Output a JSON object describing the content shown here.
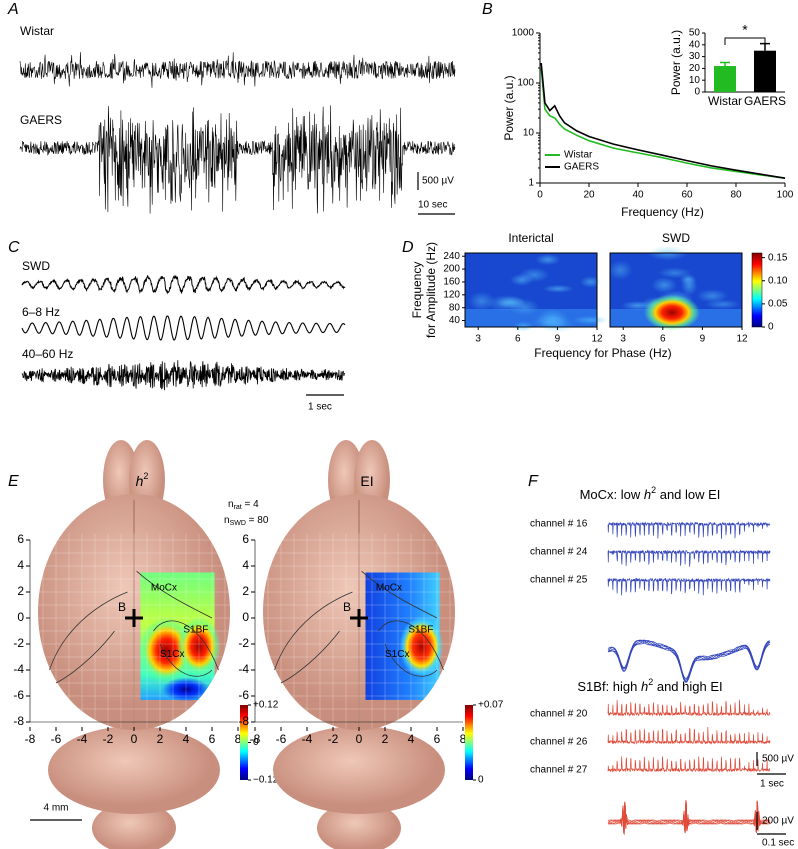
{
  "panel_labels": [
    "A",
    "B",
    "C",
    "D",
    "E",
    "F"
  ],
  "A": {
    "traces": [
      "Wistar",
      "GAERS"
    ],
    "scale_amplitude": "500 µV",
    "scale_time": "10 sec"
  },
  "chart_data": [
    {
      "type": "line",
      "xlabel": "Frequency (Hz)",
      "ylabel": "Power (a.u.)",
      "log_y": true,
      "xlim": [
        0,
        100
      ],
      "ylim": [
        1,
        1000
      ],
      "xticks": [
        0,
        20,
        40,
        60,
        80,
        100
      ],
      "yticks": [
        1,
        10,
        100,
        1000
      ],
      "x": [
        0.5,
        2,
        4,
        6,
        8,
        10,
        15,
        20,
        30,
        40,
        50,
        60,
        70,
        80,
        90,
        100
      ],
      "series": [
        {
          "name": "Wistar",
          "color": "#22bb22",
          "values": [
            200,
            30,
            22,
            20,
            15,
            12,
            9,
            7,
            5,
            4,
            3.2,
            2.5,
            2,
            1.7,
            1.45,
            1.25
          ]
        },
        {
          "name": "GAERS",
          "color": "#000000",
          "values": [
            250,
            40,
            28,
            35,
            22,
            16,
            11,
            8.5,
            6,
            4.6,
            3.6,
            2.8,
            2.2,
            1.8,
            1.5,
            1.25
          ]
        }
      ],
      "legend": "lower left"
    },
    {
      "type": "bar",
      "ylabel": "Power (a.u.)",
      "categories": [
        "Wistar",
        "GAERS"
      ],
      "values": [
        22,
        35
      ],
      "errors": [
        3,
        6
      ],
      "colors": [
        "#22bb22",
        "#000000"
      ],
      "ylim": [
        0,
        50
      ],
      "yticks": [
        0,
        10,
        20,
        30,
        40,
        50
      ],
      "annotation": "*"
    },
    {
      "type": "heatmap",
      "titles": [
        "Interictal",
        "SWD"
      ],
      "xlabel": "Frequency for Phase (Hz)",
      "ylabel": [
        "Frequency",
        "for Amplitude (Hz)"
      ],
      "xlim": [
        2,
        12
      ],
      "ylim": [
        20,
        250
      ],
      "xticks": [
        3,
        6,
        9,
        12
      ],
      "yticks": [
        40,
        80,
        120,
        160,
        200,
        240
      ],
      "colorbar_lim": [
        0,
        0.16
      ],
      "colorbar_ticks": [
        0,
        0.05,
        {
          "value": 0.1,
          "label": "0.10"
        },
        0.15
      ]
    }
  ],
  "C": {
    "traces": [
      "SWD",
      "6–8 Hz",
      "40–60 Hz"
    ],
    "scale_time": "1 sec"
  },
  "E": {
    "titles": [
      {
        "base": "h",
        "sup": "2"
      },
      {
        "base": "EI"
      }
    ],
    "n_rat": {
      "base": "n",
      "sub": "rat",
      "rest": " = 4"
    },
    "n_swd": {
      "base": "n",
      "sub": "SWD",
      "rest": " = 80"
    },
    "xlim": [
      -8,
      8
    ],
    "ylim": [
      -8,
      6
    ],
    "xticks": [
      -8,
      -6,
      -4,
      -2,
      0,
      2,
      4,
      6,
      8
    ],
    "yticks": [
      -8,
      -6,
      -4,
      -2,
      0,
      2,
      4,
      6
    ],
    "regions": [
      "MoCx",
      "S1BF",
      "S1Cx"
    ],
    "bregma": "B",
    "colorbars": [
      {
        "lim": [
          -0.12,
          0.12
        ],
        "ticks": [
          {
            "value": 0.12,
            "label": "+0.12"
          },
          0,
          {
            "value": -0.12,
            "label": "−0.12"
          }
        ]
      },
      {
        "lim": [
          0,
          0.07
        ],
        "ticks": [
          {
            "value": 0.07,
            "label": "+0.07"
          },
          0
        ]
      }
    ],
    "scale": "4 mm"
  },
  "F": {
    "groups": [
      {
        "title": {
          "pre": "MoCx: low ",
          "h": "h",
          "sup": "2",
          "post": " and low EI"
        },
        "channels": [
          "channel # 16",
          "channel # 24",
          "channel # 25"
        ]
      },
      {
        "title": {
          "pre": "S1Bf: high ",
          "h": "h",
          "sup": "2",
          "post": " and high EI"
        },
        "channels": [
          "channel # 20",
          "channel # 26",
          "channel # 27"
        ]
      }
    ],
    "scale_amplitude_1": "500 µV",
    "scale_time_1": "1 sec",
    "scale_amplitude_2": "200 µV",
    "scale_time_2": "0.1 sec"
  }
}
